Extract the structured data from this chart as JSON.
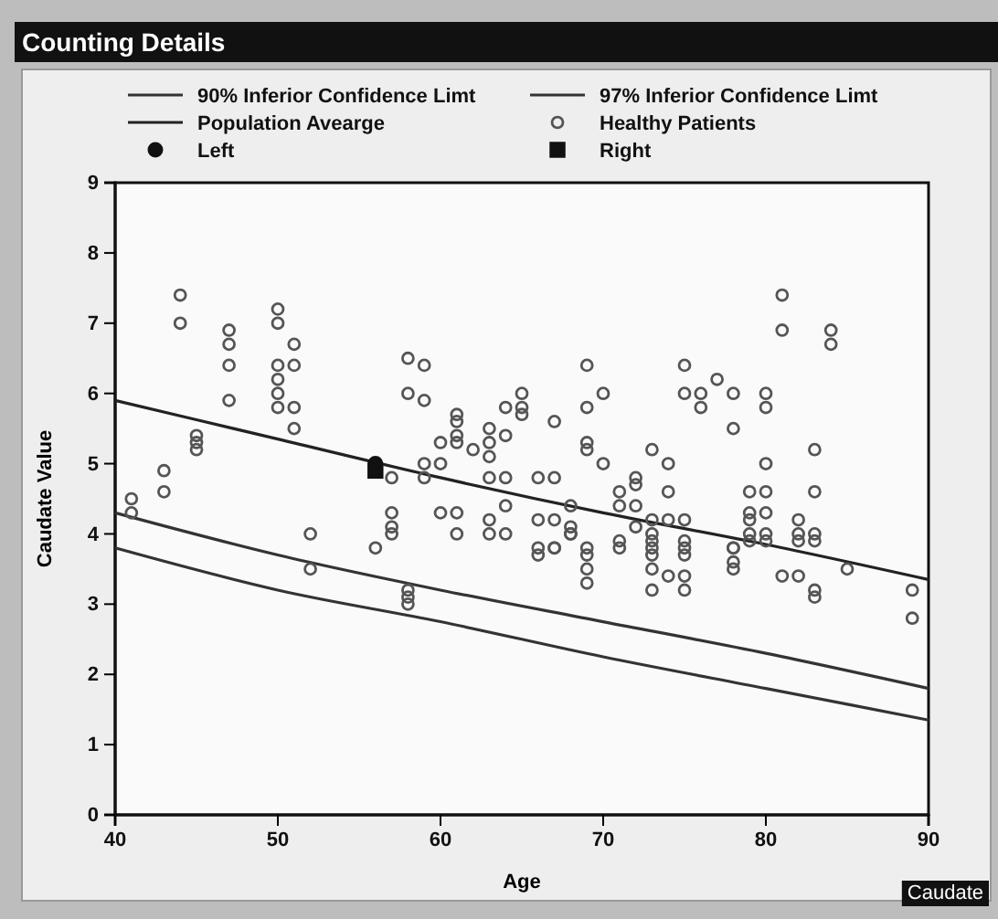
{
  "chart_data": {
    "type": "scatter",
    "title": "Counting Details",
    "xlabel": "Age",
    "ylabel": "Caudate Value",
    "annotations": [
      "Caudate"
    ],
    "xlim": [
      40,
      90
    ],
    "xticks": [
      40,
      50,
      60,
      70,
      80,
      90
    ],
    "ylim": [
      0,
      9
    ],
    "yticks": [
      0,
      1,
      2,
      3,
      4,
      5,
      6,
      7,
      8,
      9
    ],
    "grid": false,
    "legend": "top",
    "series": [
      {
        "name": "90% Inferior Confidence Limt",
        "type": "line",
        "color": "#333333",
        "line_style": "solid",
        "marker": "none",
        "x": [
          40,
          50,
          60,
          70,
          80,
          90
        ],
        "values": [
          4.3,
          3.7,
          3.2,
          2.75,
          2.3,
          1.8
        ]
      },
      {
        "name": "97% Inferior Confidence Limt",
        "type": "line",
        "color": "#333333",
        "line_style": "solid",
        "marker": "none",
        "x": [
          40,
          50,
          60,
          70,
          80,
          90
        ],
        "values": [
          3.8,
          3.2,
          2.75,
          2.25,
          1.8,
          1.35
        ]
      },
      {
        "name": "Population Avearge",
        "type": "line",
        "color": "#222222",
        "line_style": "solid",
        "marker": "none",
        "x": [
          40,
          50,
          60,
          70,
          80,
          90
        ],
        "values": [
          5.9,
          5.35,
          4.8,
          4.3,
          3.85,
          3.35
        ]
      },
      {
        "name": "Healthy Patients",
        "color": "#555555",
        "marker": "circle",
        "x": [
          41,
          41,
          44,
          44,
          43,
          43,
          45,
          45,
          45,
          47,
          47,
          47,
          47,
          50,
          50,
          50,
          50,
          50,
          50,
          51,
          51,
          51,
          51,
          52,
          52,
          56,
          57,
          57,
          57,
          57,
          58,
          58,
          58,
          58,
          58,
          59,
          59,
          59,
          59,
          60,
          60,
          60,
          61,
          61,
          61,
          61,
          61,
          61,
          62,
          63,
          63,
          63,
          63,
          63,
          63,
          64,
          64,
          64,
          64,
          64,
          65,
          65,
          65,
          66,
          67,
          66,
          67,
          67,
          66,
          67,
          68,
          68,
          68,
          69,
          69,
          69,
          69,
          69,
          70,
          70,
          71,
          71,
          71,
          72,
          72,
          72,
          72,
          73,
          73,
          73,
          73,
          74,
          74,
          74,
          75,
          75,
          75,
          75,
          76,
          76,
          77,
          78,
          78,
          78,
          79,
          79,
          79,
          79,
          80,
          80,
          80,
          80,
          80,
          80,
          81,
          81,
          82,
          82,
          83,
          83,
          83,
          84,
          84,
          66,
          67,
          68,
          69,
          69,
          69,
          71,
          73,
          73,
          73,
          73,
          74,
          75,
          75,
          75,
          75,
          78,
          78,
          78,
          79,
          80,
          81,
          82,
          82,
          83,
          83,
          83,
          85,
          89,
          89
        ],
        "values": [
          4.5,
          4.3,
          7.4,
          7.0,
          4.9,
          4.6,
          5.4,
          5.3,
          5.2,
          6.9,
          6.7,
          6.4,
          5.9,
          7.2,
          7.0,
          6.4,
          6.2,
          6.0,
          5.8,
          6.7,
          6.4,
          5.8,
          5.5,
          4.0,
          3.5,
          3.8,
          4.3,
          4.1,
          4.0,
          4.8,
          6.5,
          6.0,
          3.2,
          3.1,
          3.0,
          6.4,
          5.9,
          5.0,
          4.8,
          5.0,
          4.3,
          5.3,
          5.7,
          5.6,
          5.4,
          5.3,
          4.3,
          4.0,
          5.2,
          5.5,
          5.3,
          5.1,
          4.8,
          4.2,
          4.0,
          5.8,
          5.4,
          4.8,
          4.4,
          4.0,
          6.0,
          5.8,
          5.7,
          4.8,
          4.8,
          4.2,
          4.2,
          5.6,
          3.8,
          3.8,
          4.4,
          4.1,
          4.0,
          6.4,
          5.8,
          5.3,
          5.2,
          3.8,
          5.0,
          6.0,
          4.6,
          4.4,
          3.8,
          4.8,
          4.7,
          4.4,
          4.1,
          5.2,
          4.2,
          4.0,
          3.8,
          5.0,
          4.6,
          4.2,
          6.4,
          6.0,
          4.2,
          3.8,
          6.0,
          5.8,
          6.2,
          6.0,
          5.5,
          3.8,
          4.6,
          4.3,
          4.2,
          4.0,
          6.0,
          5.8,
          5.0,
          4.6,
          4.3,
          4.0,
          7.4,
          6.9,
          4.2,
          4.0,
          5.2,
          4.6,
          4.0,
          6.9,
          6.7,
          3.7,
          3.8,
          4.0,
          3.7,
          3.5,
          3.3,
          3.9,
          3.9,
          3.7,
          3.5,
          3.2,
          3.4,
          3.9,
          3.7,
          3.4,
          3.2,
          3.8,
          3.6,
          3.5,
          3.9,
          3.9,
          3.4,
          3.4,
          3.9,
          3.9,
          3.2,
          3.1,
          3.5,
          3.2,
          2.8
        ]
      },
      {
        "name": "Left",
        "color": "#111111",
        "marker": "circle",
        "x": [
          56
        ],
        "values": [
          5.0
        ]
      },
      {
        "name": "Right",
        "color": "#111111",
        "marker": "square",
        "x": [
          56
        ],
        "values": [
          4.9
        ]
      }
    ]
  }
}
